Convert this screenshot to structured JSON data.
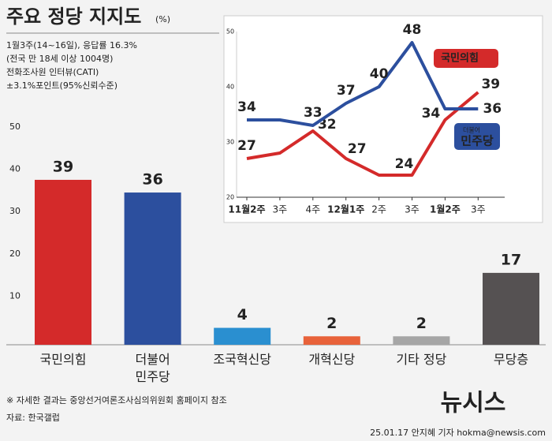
{
  "header": {
    "title": "주요 정당 지지도",
    "unit": "(%)",
    "info": [
      "1월3주(14~16일), 응답률 16.3%",
      "(전국 만 18세 이상 1004명)",
      "전화조사원 인터뷰(CATI)",
      "±3.1%포인트(95%신뢰수준)"
    ]
  },
  "footer": {
    "note": "※ 자세한 결과는 중앙선거여론조사심의위원회 홈페이지 참조",
    "source": "자료: 한국갤럽",
    "logo": "뉴시스",
    "credit": "25.01.17 안지혜 기자 hokma@newsis.com"
  },
  "chart_data": [
    {
      "type": "bar",
      "categories": [
        "국민의힘",
        "더불어\n민주당",
        "조국혁신당",
        "개혁신당",
        "기타 정당",
        "무당층"
      ],
      "values": [
        39,
        36,
        4,
        2,
        2,
        17
      ],
      "colors": [
        "#d42a2a",
        "#2c4f9e",
        "#2a8fd0",
        "#e8623a",
        "#a6a6a6",
        "#555152"
      ],
      "ylim": [
        0,
        50
      ],
      "yticks": [
        10,
        20,
        30,
        40,
        50
      ]
    },
    {
      "type": "line",
      "categories": [
        "11월2주",
        "3주",
        "4주",
        "12월1주",
        "2주",
        "3주",
        "1월2주",
        "3주"
      ],
      "series": [
        {
          "name": "국민의힘",
          "color": "#d42a2a",
          "values": [
            27,
            28,
            32,
            27,
            24,
            24,
            34,
            39
          ],
          "value_labels": [
            "27",
            null,
            "32",
            "27",
            null,
            "24",
            "34",
            "39"
          ]
        },
        {
          "name": "민주당",
          "name_prefix": "더불어",
          "color": "#2c4f9e",
          "values": [
            34,
            34,
            33,
            37,
            40,
            48,
            36,
            36
          ],
          "value_labels": [
            "34",
            null,
            "33",
            "37",
            "40",
            "48",
            null,
            "36"
          ]
        }
      ],
      "ylim": [
        20,
        50
      ],
      "yticks": [
        20,
        30,
        40,
        50
      ]
    }
  ]
}
